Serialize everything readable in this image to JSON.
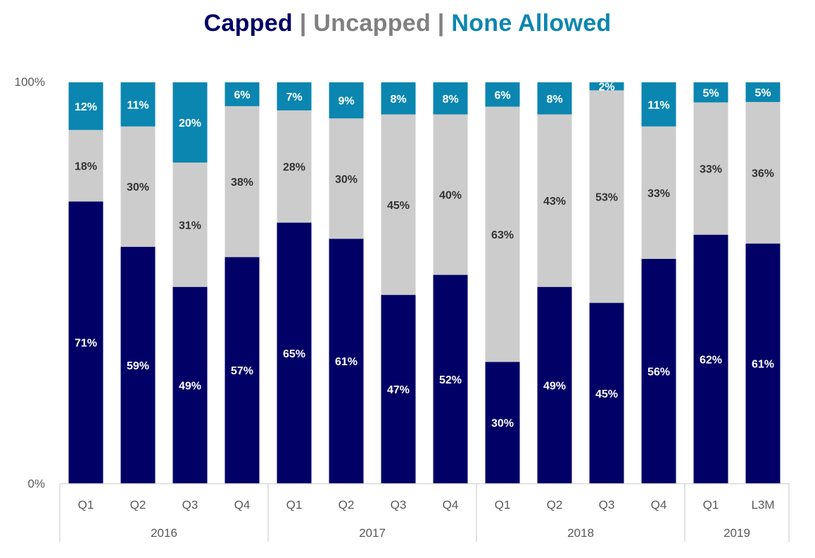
{
  "colors": {
    "capped": "#000066",
    "uncapped": "#cccccc",
    "none_allowed": "#0b86b0",
    "separator": "#808080",
    "axis_text": "#595959",
    "axis_line": "#d9d9d9"
  },
  "title": {
    "capped": "Capped",
    "sep1": " | ",
    "uncapped": "Uncapped",
    "sep2": " | ",
    "none_allowed": "None Allowed"
  },
  "chart_data": {
    "type": "bar",
    "stacked": true,
    "percent_stacked": true,
    "ylim": [
      0,
      100
    ],
    "yticks": [
      "0%",
      "100%"
    ],
    "categories": [
      "Q1",
      "Q2",
      "Q3",
      "Q4",
      "Q1",
      "Q2",
      "Q3",
      "Q4",
      "Q1",
      "Q2",
      "Q3",
      "Q4",
      "Q1",
      "L3M"
    ],
    "groups": [
      {
        "label": "2016",
        "count": 4
      },
      {
        "label": "2017",
        "count": 4
      },
      {
        "label": "2018",
        "count": 4
      },
      {
        "label": "2019",
        "count": 2
      }
    ],
    "series": [
      {
        "name": "Capped",
        "color": "#000066",
        "label_color": "#ffffff",
        "values": [
          71,
          59,
          49,
          57,
          65,
          61,
          47,
          52,
          30,
          49,
          45,
          56,
          62,
          61
        ]
      },
      {
        "name": "Uncapped",
        "color": "#cccccc",
        "label_color": "#333333",
        "values": [
          18,
          30,
          31,
          38,
          28,
          30,
          45,
          40,
          63,
          43,
          53,
          33,
          33,
          36
        ]
      },
      {
        "name": "None Allowed",
        "color": "#0b86b0",
        "label_color": "#ffffff",
        "values": [
          12,
          11,
          20,
          6,
          7,
          9,
          8,
          8,
          6,
          8,
          2,
          11,
          5,
          5
        ]
      }
    ],
    "grid": false,
    "legend": "title"
  }
}
